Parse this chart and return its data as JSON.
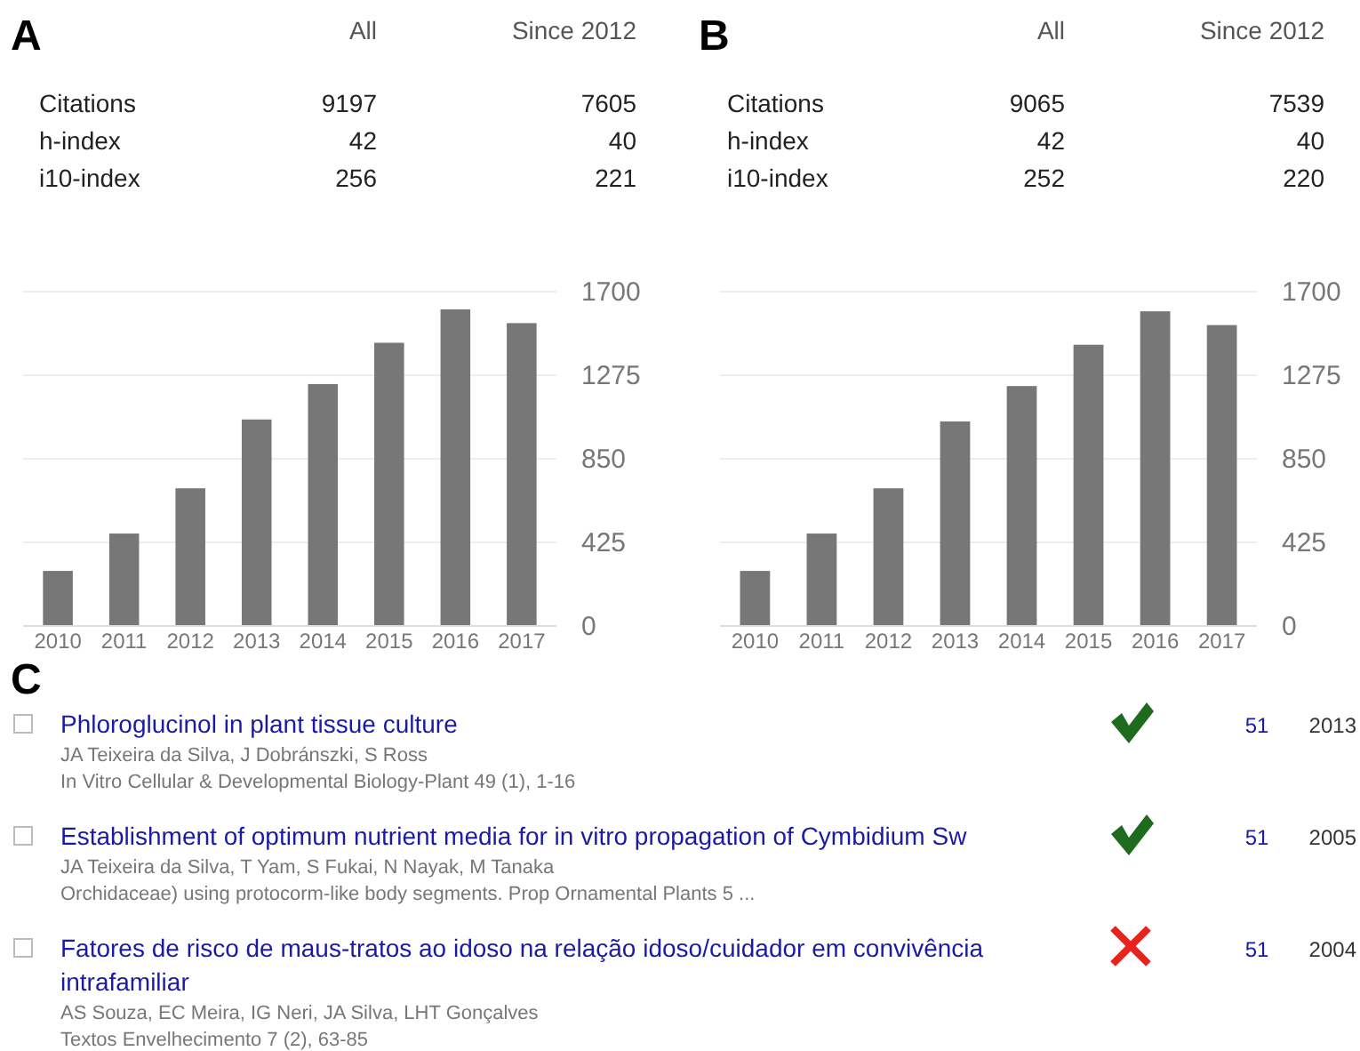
{
  "chart_data": [
    {
      "type": "other",
      "title": "A",
      "annotations": [
        "All",
        "Since 2012",
        "Citations",
        "9197",
        "7605",
        "h-index",
        "42",
        "40",
        "i10-index",
        "256",
        "221"
      ]
    },
    {
      "type": "bar",
      "categories": [
        "2010",
        "2011",
        "2012",
        "2013",
        "2014",
        "2015",
        "2016",
        "2017"
      ],
      "values": [
        280,
        470,
        700,
        1050,
        1230,
        1440,
        1610,
        1540
      ],
      "color": "#777777",
      "ylim": [
        0,
        1700
      ],
      "yticks": [
        0,
        425,
        850,
        1275,
        1700
      ],
      "grid": "y"
    },
    {
      "type": "other",
      "title": "B",
      "annotations": [
        "All",
        "Since 2012",
        "Citations",
        "9065",
        "7539",
        "h-index",
        "42",
        "40",
        "i10-index",
        "252",
        "220"
      ]
    },
    {
      "type": "bar",
      "categories": [
        "2010",
        "2011",
        "2012",
        "2013",
        "2014",
        "2015",
        "2016",
        "2017"
      ],
      "values": [
        280,
        470,
        700,
        1040,
        1220,
        1430,
        1600,
        1530
      ],
      "color": "#777777",
      "ylim": [
        0,
        1700
      ],
      "yticks": [
        0,
        425,
        850,
        1275,
        1700
      ],
      "grid": "y"
    },
    {
      "type": "other",
      "title": "C",
      "annotations": [
        "Phloroglucinol in plant tissue culture",
        "JA Teixeira da Silva, J Dobránszki, S Ross",
        "In Vitro Cellular & Developmental Biology-Plant 49 (1), 1-16",
        "51",
        "2013",
        "Establishment of optimum nutrient media for in vitro propagation of Cymbidium Sw",
        "JA Teixeira da Silva, T Yam, S Fukai, N Nayak, M Tanaka",
        "Orchidaceae) using protocorm-like body segments. Prop Ornamental Plants 5 ...",
        "51",
        "2005",
        "Fatores de risco de maus-tratos ao idoso na relação idoso/cuidador em convivência intrafamiliar",
        "AS Souza, EC Meira, IG Neri, JA Silva, LHT Gonçalves",
        "Textos Envelhecimento 7 (2), 63-85",
        "51",
        "2004"
      ]
    }
  ]
}
